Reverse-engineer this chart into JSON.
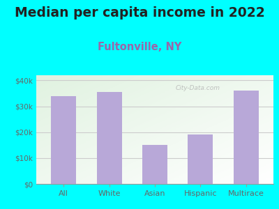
{
  "title": "Median per capita income in 2022",
  "subtitle": "Fultonville, NY",
  "categories": [
    "All",
    "White",
    "Asian",
    "Hispanic",
    "Multirace"
  ],
  "values": [
    34000,
    35500,
    15000,
    19000,
    36000
  ],
  "bar_color": "#b8a8d8",
  "title_fontsize": 13.5,
  "subtitle_fontsize": 10.5,
  "subtitle_color": "#9966aa",
  "title_color": "#222222",
  "background_outer": "#00ffff",
  "tick_color": "#666666",
  "ylim": [
    0,
    42000
  ],
  "yticks": [
    0,
    10000,
    20000,
    30000,
    40000
  ],
  "ytick_labels": [
    "$0",
    "$10k",
    "$20k",
    "$30k",
    "$40k"
  ],
  "watermark": "City-Data.com",
  "grid_color": "#cccccc"
}
